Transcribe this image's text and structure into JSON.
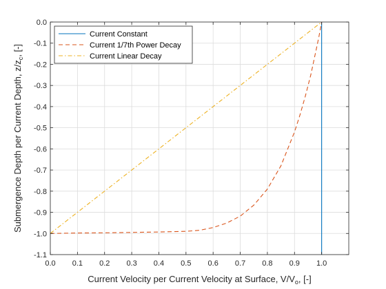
{
  "chart_data": {
    "type": "line",
    "xlabel": {
      "main": "Current Velocity per Current Velocity at Surface, V/V",
      "sub": "o",
      "suffix": ", [-]"
    },
    "ylabel": {
      "main": "Submergence Depth per Current Depth, z/z",
      "sub": "c",
      "suffix": ", [-]"
    },
    "xlim": [
      0,
      1.1
    ],
    "ylim": [
      -1.1,
      0
    ],
    "xticks": [
      "0.0",
      "0.1",
      "0.2",
      "0.3",
      "0.4",
      "0.5",
      "0.6",
      "0.7",
      "0.8",
      "0.9",
      "1.0"
    ],
    "yticks": [
      "-1.1",
      "-1.0",
      "-0.9",
      "-0.8",
      "-0.7",
      "-0.6",
      "-0.5",
      "-0.4",
      "-0.3",
      "-0.2",
      "-0.1",
      "0.0"
    ],
    "grid": true,
    "legend_position": "top-left",
    "series": [
      {
        "name": "Current Constant",
        "color": "#0072BD",
        "dash": "solid",
        "x": [
          1.0,
          1.0
        ],
        "y": [
          0.0,
          -1.1
        ]
      },
      {
        "name": "Current 1/7th Power Decay",
        "color": "#D95319",
        "dash": "dashed",
        "x": [
          0.0,
          0.1,
          0.2,
          0.3,
          0.4,
          0.5,
          0.55,
          0.6,
          0.65,
          0.7,
          0.75,
          0.8,
          0.85,
          0.9,
          0.92,
          0.94,
          0.96,
          0.98,
          0.99,
          1.0
        ],
        "y": [
          -1.0,
          -0.998,
          -0.997,
          -0.995,
          -0.993,
          -0.99,
          -0.985,
          -0.972,
          -0.951,
          -0.918,
          -0.866,
          -0.79,
          -0.68,
          -0.52,
          -0.44,
          -0.35,
          -0.25,
          -0.13,
          -0.069,
          0.0
        ]
      },
      {
        "name": "Current Linear Decay",
        "color": "#EDB120",
        "dash": "dashdot",
        "x": [
          0.0,
          1.0
        ],
        "y": [
          -1.0,
          0.0
        ]
      }
    ]
  }
}
